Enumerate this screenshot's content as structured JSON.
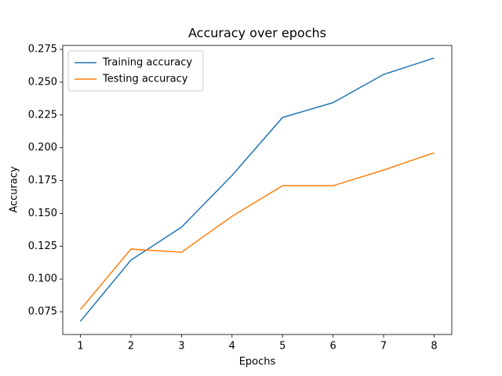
{
  "chart_data": {
    "type": "line",
    "title": "Accuracy over epochs",
    "x_label": "Epochs",
    "y_label": "Accuracy",
    "x": [
      1,
      2,
      3,
      4,
      5,
      6,
      7,
      8
    ],
    "series": [
      {
        "name": "Training accuracy",
        "color": "#1f77b4",
        "values": [
          0.0678,
          0.1144,
          0.1395,
          0.1789,
          0.2231,
          0.2344,
          0.2559,
          0.2684
        ]
      },
      {
        "name": "Testing accuracy",
        "color": "#ff7f0e",
        "values": [
          0.0768,
          0.1228,
          0.1204,
          0.1478,
          0.1711,
          0.1711,
          0.183,
          0.1962
        ]
      }
    ],
    "xlim": [
      0.65,
      8.35
    ],
    "xticks": [
      1,
      2,
      3,
      4,
      5,
      6,
      7,
      8
    ],
    "ylim": [
      0.0577,
      0.278
    ],
    "yticks": [
      0.075,
      {
        "value": 0.1,
        "label": "0.100"
      },
      0.125,
      {
        "value": 0.15,
        "label": "0.150"
      },
      0.175,
      {
        "value": 0.2,
        "label": "0.200"
      },
      0.225,
      {
        "value": 0.25,
        "label": "0.250"
      },
      0.275
    ],
    "legend": "upper left",
    "grid": false
  }
}
